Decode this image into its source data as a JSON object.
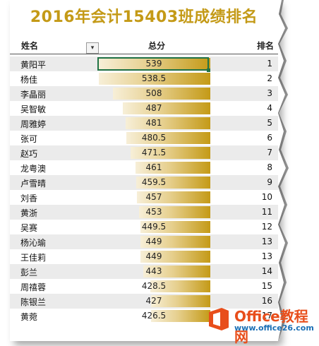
{
  "title": "2016年会计15403班成绩排名",
  "headers": {
    "name": "姓名",
    "total": "总分",
    "rank": "排名"
  },
  "filter_icon": "sort-filter-icon",
  "max_score": 539,
  "rows": [
    {
      "name": "黄阳平",
      "score": "539",
      "rank": "1"
    },
    {
      "name": "杨佳",
      "score": "538.5",
      "rank": "2"
    },
    {
      "name": "李晶丽",
      "score": "508",
      "rank": "3"
    },
    {
      "name": "吴智敏",
      "score": "487",
      "rank": "4"
    },
    {
      "name": "周雅婷",
      "score": "481",
      "rank": "5"
    },
    {
      "name": "张可",
      "score": "480.5",
      "rank": "6"
    },
    {
      "name": "赵巧",
      "score": "471.5",
      "rank": "7"
    },
    {
      "name": "龙粤澳",
      "score": "461",
      "rank": "8"
    },
    {
      "name": "卢雪晴",
      "score": "459.5",
      "rank": "9"
    },
    {
      "name": "刘香",
      "score": "457",
      "rank": "10"
    },
    {
      "name": "黄浙",
      "score": "453",
      "rank": "11"
    },
    {
      "name": "吴赛",
      "score": "449.5",
      "rank": "12"
    },
    {
      "name": "杨沁瑜",
      "score": "449",
      "rank": "13"
    },
    {
      "name": "王佳莉",
      "score": "449",
      "rank": "13"
    },
    {
      "name": "彭兰",
      "score": "443",
      "rank": "14"
    },
    {
      "name": "周禧蓉",
      "score": "428.5",
      "rank": "15"
    },
    {
      "name": "陈银兰",
      "score": "427",
      "rank": "16"
    },
    {
      "name": "黄菀",
      "score": "426.5",
      "rank": "17"
    }
  ],
  "logo": {
    "brand": "Office教程网",
    "url": "www.office26.com"
  },
  "colors": {
    "title": "#c49a17",
    "bar_dark": "#c49a17",
    "bar_light": "#f7efd8",
    "selection": "#217346",
    "logo_orange": "#e84e1b"
  }
}
